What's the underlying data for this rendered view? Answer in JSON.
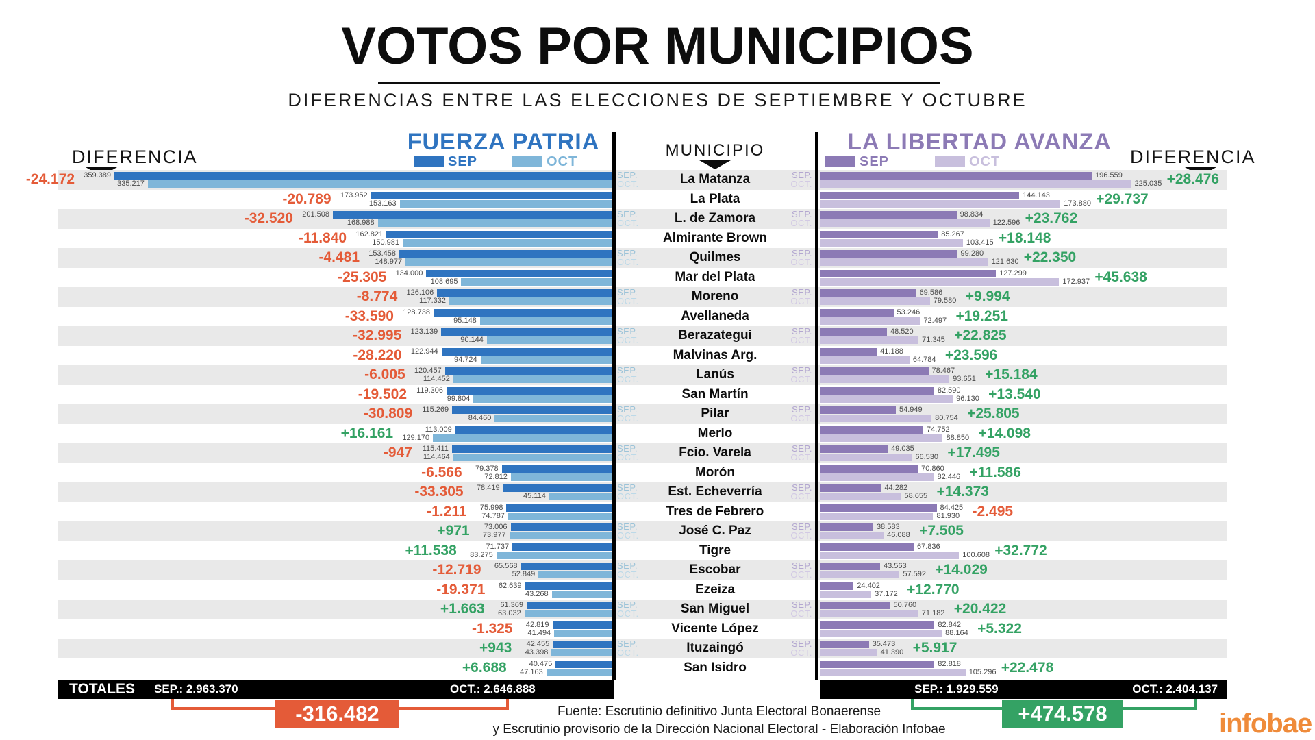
{
  "title": "VOTOS POR MUNICIPIOS",
  "subtitle": "DIFERENCIAS ENTRE LAS ELECCIONES DE SEPTIEMBRE Y OCTUBRE",
  "headers": {
    "diff_left": "DIFERENCIA",
    "diff_right": "DIFERENCIA",
    "municipio": "MUNICIPIO",
    "fuerza_patria": "FUERZA PATRIA",
    "la_libertad_avanza": "LA LIBERTAD AVANZA",
    "legend_sep": "SEP",
    "legend_oct": "OCT"
  },
  "axis_labels": {
    "sep": "SEP.",
    "oct": "OCT."
  },
  "colors": {
    "fp_sep": "#2f74c0",
    "fp_oct": "#7fb6d9",
    "lla_sep": "#8c7ab5",
    "lla_oct": "#c8bfdd",
    "negative": "#e45b38",
    "positive": "#34a264",
    "stripe": "#e9e9e9",
    "logo": "#ef8b3a"
  },
  "chart_data": {
    "type": "bar",
    "orientation": "horizontal",
    "categories": [
      "La Matanza",
      "La Plata",
      "L. de Zamora",
      "Almirante Brown",
      "Quilmes",
      "Mar del Plata",
      "Moreno",
      "Avellaneda",
      "Berazategui",
      "Malvinas Arg.",
      "Lanús",
      "San Martín",
      "Pilar",
      "Merlo",
      "Fcio. Varela",
      "Morón",
      "Est. Echeverría",
      "Tres de Febrero",
      "José C. Paz",
      "Tigre",
      "Escobar",
      "Ezeiza",
      "San Miguel",
      "Vicente López",
      "Ituzaingó",
      "San Isidro"
    ],
    "series": [
      {
        "name": "Fuerza Patria SEP",
        "color": "#2f74c0",
        "values": [
          359389,
          173952,
          201508,
          162821,
          153458,
          134000,
          126106,
          128738,
          123139,
          122944,
          120457,
          119306,
          115269,
          113009,
          115411,
          79378,
          78419,
          75998,
          73006,
          71737,
          65568,
          62639,
          61369,
          42819,
          42455,
          40475
        ]
      },
      {
        "name": "Fuerza Patria OCT",
        "color": "#7fb6d9",
        "values": [
          335217,
          153163,
          168988,
          150981,
          148977,
          108695,
          117332,
          95148,
          90144,
          94724,
          114452,
          99804,
          84460,
          129170,
          114464,
          72812,
          45114,
          74787,
          73977,
          83275,
          52849,
          43268,
          63032,
          41494,
          43398,
          47163
        ]
      },
      {
        "name": "La Libertad Avanza SEP",
        "color": "#8c7ab5",
        "values": [
          196559,
          144143,
          98834,
          85267,
          99280,
          127299,
          69586,
          53246,
          48520,
          41188,
          78467,
          82590,
          54949,
          74752,
          49035,
          70860,
          44282,
          84425,
          38583,
          67836,
          43563,
          24402,
          50760,
          82842,
          35473,
          82818
        ]
      },
      {
        "name": "La Libertad Avanza OCT",
        "color": "#c8bfdd",
        "values": [
          225035,
          173880,
          122596,
          103415,
          121630,
          172937,
          79580,
          72497,
          71345,
          64784,
          93651,
          96130,
          80754,
          88850,
          66530,
          82446,
          58655,
          81930,
          46088,
          100608,
          57592,
          37172,
          71182,
          88164,
          41390,
          105296
        ]
      }
    ],
    "rows": [
      {
        "municipio": "La Matanza",
        "fp_diff": "-24.172",
        "fp_sep": "359.389",
        "fp_oct": "335.217",
        "lla_sep": "196.559",
        "lla_oct": "225.035",
        "lla_diff": "+28.476"
      },
      {
        "municipio": "La Plata",
        "fp_diff": "-20.789",
        "fp_sep": "173.952",
        "fp_oct": "153.163",
        "lla_sep": "144.143",
        "lla_oct": "173.880",
        "lla_diff": "+29.737"
      },
      {
        "municipio": "L. de Zamora",
        "fp_diff": "-32.520",
        "fp_sep": "201.508",
        "fp_oct": "168.988",
        "lla_sep": "98.834",
        "lla_oct": "122.596",
        "lla_diff": "+23.762"
      },
      {
        "municipio": "Almirante Brown",
        "fp_diff": "-11.840",
        "fp_sep": "162.821",
        "fp_oct": "150.981",
        "lla_sep": "85.267",
        "lla_oct": "103.415",
        "lla_diff": "+18.148"
      },
      {
        "municipio": "Quilmes",
        "fp_diff": "-4.481",
        "fp_sep": "153.458",
        "fp_oct": "148.977",
        "lla_sep": "99.280",
        "lla_oct": "121.630",
        "lla_diff": "+22.350"
      },
      {
        "municipio": "Mar del Plata",
        "fp_diff": "-25.305",
        "fp_sep": "134.000",
        "fp_oct": "108.695",
        "lla_sep": "127.299",
        "lla_oct": "172.937",
        "lla_diff": "+45.638"
      },
      {
        "municipio": "Moreno",
        "fp_diff": "-8.774",
        "fp_sep": "126.106",
        "fp_oct": "117.332",
        "lla_sep": "69.586",
        "lla_oct": "79.580",
        "lla_diff": "+9.994"
      },
      {
        "municipio": "Avellaneda",
        "fp_diff": "-33.590",
        "fp_sep": "128.738",
        "fp_oct": "95.148",
        "lla_sep": "53.246",
        "lla_oct": "72.497",
        "lla_diff": "+19.251"
      },
      {
        "municipio": "Berazategui",
        "fp_diff": "-32.995",
        "fp_sep": "123.139",
        "fp_oct": "90.144",
        "lla_sep": "48.520",
        "lla_oct": "71.345",
        "lla_diff": "+22.825"
      },
      {
        "municipio": "Malvinas Arg.",
        "fp_diff": "-28.220",
        "fp_sep": "122.944",
        "fp_oct": "94.724",
        "lla_sep": "41.188",
        "lla_oct": "64.784",
        "lla_diff": "+23.596"
      },
      {
        "municipio": "Lanús",
        "fp_diff": "-6.005",
        "fp_sep": "120.457",
        "fp_oct": "114.452",
        "lla_sep": "78.467",
        "lla_oct": "93.651",
        "lla_diff": "+15.184"
      },
      {
        "municipio": "San Martín",
        "fp_diff": "-19.502",
        "fp_sep": "119.306",
        "fp_oct": "99.804",
        "lla_sep": "82.590",
        "lla_oct": "96.130",
        "lla_diff": "+13.540"
      },
      {
        "municipio": "Pilar",
        "fp_diff": "-30.809",
        "fp_sep": "115.269",
        "fp_oct": "84.460",
        "lla_sep": "54.949",
        "lla_oct": "80.754",
        "lla_diff": "+25.805"
      },
      {
        "municipio": "Merlo",
        "fp_diff": "+16.161",
        "fp_sep": "113.009",
        "fp_oct": "129.170",
        "lla_sep": "74.752",
        "lla_oct": "88.850",
        "lla_diff": "+14.098"
      },
      {
        "municipio": "Fcio. Varela",
        "fp_diff": "-947",
        "fp_sep": "115.411",
        "fp_oct": "114.464",
        "lla_sep": "49.035",
        "lla_oct": "66.530",
        "lla_diff": "+17.495"
      },
      {
        "municipio": "Morón",
        "fp_diff": "-6.566",
        "fp_sep": "79.378",
        "fp_oct": "72.812",
        "lla_sep": "70.860",
        "lla_oct": "82.446",
        "lla_diff": "+11.586"
      },
      {
        "municipio": "Est. Echeverría",
        "fp_diff": "-33.305",
        "fp_sep": "78.419",
        "fp_oct": "45.114",
        "lla_sep": "44.282",
        "lla_oct": "58.655",
        "lla_diff": "+14.373"
      },
      {
        "municipio": "Tres de Febrero",
        "fp_diff": "-1.211",
        "fp_sep": "75.998",
        "fp_oct": "74.787",
        "lla_sep": "84.425",
        "lla_oct": "81.930",
        "lla_diff": "-2.495"
      },
      {
        "municipio": "José C. Paz",
        "fp_diff": "+971",
        "fp_sep": "73.006",
        "fp_oct": "73.977",
        "lla_sep": "38.583",
        "lla_oct": "46.088",
        "lla_diff": "+7.505"
      },
      {
        "municipio": "Tigre",
        "fp_diff": "+11.538",
        "fp_sep": "71.737",
        "fp_oct": "83.275",
        "lla_sep": "67.836",
        "lla_oct": "100.608",
        "lla_diff": "+32.772"
      },
      {
        "municipio": "Escobar",
        "fp_diff": "-12.719",
        "fp_sep": "65.568",
        "fp_oct": "52.849",
        "lla_sep": "43.563",
        "lla_oct": "57.592",
        "lla_diff": "+14.029"
      },
      {
        "municipio": "Ezeiza",
        "fp_diff": "-19.371",
        "fp_sep": "62.639",
        "fp_oct": "43.268",
        "lla_sep": "24.402",
        "lla_oct": "37.172",
        "lla_diff": "+12.770"
      },
      {
        "municipio": "San Miguel",
        "fp_diff": "+1.663",
        "fp_sep": "61.369",
        "fp_oct": "63.032",
        "lla_sep": "50.760",
        "lla_oct": "71.182",
        "lla_diff": "+20.422"
      },
      {
        "municipio": "Vicente López",
        "fp_diff": "-1.325",
        "fp_sep": "42.819",
        "fp_oct": "41.494",
        "lla_sep": "82.842",
        "lla_oct": "88.164",
        "lla_diff": "+5.322"
      },
      {
        "municipio": "Ituzaingó",
        "fp_diff": "+943",
        "fp_sep": "42.455",
        "fp_oct": "43.398",
        "lla_sep": "35.473",
        "lla_oct": "41.390",
        "lla_diff": "+5.917"
      },
      {
        "municipio": "San Isidro",
        "fp_diff": "+6.688",
        "fp_sep": "40.475",
        "fp_oct": "47.163",
        "lla_sep": "82.818",
        "lla_oct": "105.296",
        "lla_diff": "+22.478"
      }
    ]
  },
  "totals": {
    "fp": {
      "label": "TOTALES",
      "sep": "SEP.: 2.963.370",
      "oct": "OCT.: 2.646.888",
      "diff": "-316.482"
    },
    "lla": {
      "sep": "SEP.: 1.929.559",
      "oct": "OCT.: 2.404.137",
      "diff": "+474.578"
    }
  },
  "source_line1": "Fuente: Escrutinio definitivo Junta Electoral Bonaerense",
  "source_line2": "y Escrutinio provisorio de la Dirección Nacional Electoral - Elaboración Infobae",
  "logo": "infobae"
}
